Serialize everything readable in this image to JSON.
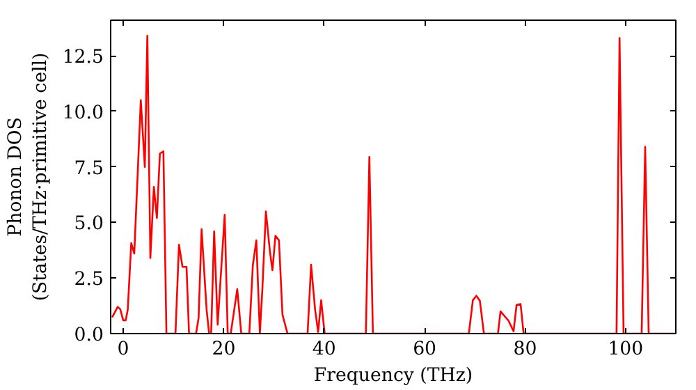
{
  "chart_data": {
    "type": "line",
    "xlabel": "Frequency (THz)",
    "ylabel": "Phonon DOS\n(States/THz·primitive cell)",
    "xlim": [
      -2.5,
      110
    ],
    "ylim": [
      0,
      14.1
    ],
    "xticks": [
      0,
      20,
      40,
      60,
      80,
      100
    ],
    "yticks": [
      {
        "value": 0,
        "label": "0.0"
      },
      {
        "value": 2.5,
        "label": "2.5"
      },
      {
        "value": 5,
        "label": "5.0"
      },
      {
        "value": 7.5,
        "label": "7.5"
      },
      {
        "value": 10,
        "label": "10.0"
      },
      {
        "value": 12.5,
        "label": "12.5"
      }
    ],
    "grid": false,
    "marker": "none",
    "line_style": "solid",
    "series": [
      {
        "color": "#ff0000",
        "x": [
          -2.2,
          -1.1,
          -0.6,
          0,
          0.5,
          0.9,
          1.6,
          2.2,
          3.5,
          4.3,
          4.8,
          5.4,
          6.1,
          6.7,
          7.3,
          8.0,
          8.6,
          10.4,
          11.1,
          11.8,
          12.6,
          13.1,
          14.5,
          15.0,
          15.6,
          16.6,
          17.1,
          17.5,
          18.1,
          18.8,
          20.2,
          20.8,
          21.4,
          22.7,
          23.5,
          25.1,
          25.8,
          26.5,
          27.2,
          27.7,
          28.4,
          29.2,
          29.7,
          30.3,
          31.0,
          31.7,
          32.7,
          36.7,
          37.4,
          38.2,
          38.8,
          39.4,
          40.1,
          48.3,
          49.0,
          49.7,
          68.8,
          69.6,
          70.3,
          71.0,
          71.8,
          74.6,
          75.1,
          76.7,
          77.7,
          78.3,
          79.1,
          79.7,
          98.2,
          98.8,
          99.6,
          103.2,
          103.9,
          104.6,
          110
        ],
        "values": [
          0.73,
          1.2,
          1.1,
          0.6,
          0.6,
          1.07,
          4.07,
          3.6,
          10.5,
          7.5,
          13.4,
          3.4,
          6.6,
          5.2,
          8.1,
          8.2,
          0,
          0,
          4.0,
          3.0,
          3.0,
          0,
          0,
          0.7,
          4.7,
          1.07,
          0,
          0,
          4.6,
          0.4,
          5.35,
          0,
          0,
          2.0,
          0,
          0,
          3.07,
          4.2,
          0,
          2.0,
          5.5,
          3.7,
          2.85,
          4.4,
          4.2,
          0.85,
          0,
          0,
          3.1,
          1.07,
          0.07,
          1.5,
          0,
          0,
          7.95,
          0,
          0,
          1.5,
          1.7,
          1.47,
          0,
          0,
          1.0,
          0.58,
          0.1,
          1.29,
          1.33,
          0,
          0,
          13.3,
          0,
          0,
          8.4,
          0,
          0
        ]
      }
    ]
  }
}
